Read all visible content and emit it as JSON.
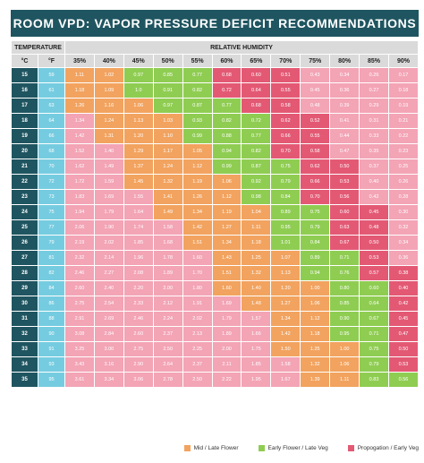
{
  "title": "ROOM VPD: VAPOR PRESSURE DEFICIT RECOMMENDATIONS (kPa)",
  "header": {
    "temperature": "TEMPERATURE",
    "relative_humidity": "RELATIVE HUMIDITY",
    "celsius": "°C",
    "fahrenheit": "°F"
  },
  "humidity_columns": [
    "35%",
    "40%",
    "45%",
    "50%",
    "55%",
    "60%",
    "65%",
    "70%",
    "75%",
    "80%",
    "85%",
    "90%"
  ],
  "colors": {
    "header_bg": "#1f5560",
    "temp_cell": "#75cce0",
    "mid_late_flower": "#f2a35f",
    "early_flower_late_veg": "#8fcd52",
    "propagation_early_veg": "#e35974",
    "danger_zone": "#f3a4b5",
    "subheader_bg": "#dadada"
  },
  "legend": [
    {
      "label": "Mid / Late Flower",
      "color": "#f2a35f"
    },
    {
      "label": "Early Flower / Late Veg",
      "color": "#8fcd52"
    },
    {
      "label": "Propogation / Early Veg",
      "color": "#e35974"
    }
  ],
  "rows": [
    {
      "c": "15",
      "f": "59",
      "v": [
        "1.11",
        "1.02",
        "0.97",
        "0.85",
        "0.77",
        "0.68",
        "0.60",
        "0.51",
        "0.43",
        "0.34",
        "0.26",
        "0.17"
      ],
      "k": [
        "o",
        "o",
        "g",
        "g",
        "g",
        "m",
        "m",
        "m",
        "p",
        "p",
        "p",
        "p"
      ]
    },
    {
      "c": "16",
      "f": "61",
      "v": [
        "1.18",
        "1.09",
        "1.0",
        "0.91",
        "0.82",
        "0.72",
        "0.64",
        "0.55",
        "0.45",
        "0.36",
        "0.27",
        "0.18"
      ],
      "k": [
        "o",
        "o",
        "g",
        "g",
        "g",
        "m",
        "m",
        "m",
        "p",
        "p",
        "p",
        "p"
      ]
    },
    {
      "c": "17",
      "f": "63",
      "v": [
        "1.26",
        "1.16",
        "1.06",
        "0.97",
        "0.87",
        "0.77",
        "0.68",
        "0.58",
        "0.48",
        "0.39",
        "0.29",
        "0.19"
      ],
      "k": [
        "o",
        "o",
        "o",
        "g",
        "g",
        "g",
        "m",
        "m",
        "p",
        "p",
        "p",
        "p"
      ]
    },
    {
      "c": "18",
      "f": "64",
      "v": [
        "1.34",
        "1.24",
        "1.13",
        "1.03",
        "0.93",
        "0.82",
        "0.72",
        "0.62",
        "0.52",
        "0.41",
        "0.31",
        "0.21"
      ],
      "k": [
        "p",
        "o",
        "o",
        "o",
        "g",
        "g",
        "g",
        "m",
        "m",
        "p",
        "p",
        "p"
      ]
    },
    {
      "c": "19",
      "f": "66",
      "v": [
        "1.42",
        "1.31",
        "1.20",
        "1.10",
        "0.99",
        "0.88",
        "0.77",
        "0.66",
        "0.55",
        "0.44",
        "0.33",
        "0.22"
      ],
      "k": [
        "p",
        "o",
        "o",
        "o",
        "g",
        "g",
        "g",
        "m",
        "m",
        "p",
        "p",
        "p"
      ]
    },
    {
      "c": "20",
      "f": "68",
      "v": [
        "1.52",
        "1.40",
        "1.29",
        "1.17",
        "1.05",
        "0.94",
        "0.82",
        "0.70",
        "0.58",
        "0.47",
        "0.35",
        "0.23"
      ],
      "k": [
        "p",
        "p",
        "o",
        "o",
        "o",
        "g",
        "g",
        "m",
        "m",
        "p",
        "p",
        "p"
      ]
    },
    {
      "c": "21",
      "f": "70",
      "v": [
        "1.62",
        "1.49",
        "1.37",
        "1.24",
        "1.12",
        "0.99",
        "0.87",
        "0.75",
        "0.62",
        "0.50",
        "0.37",
        "0.25"
      ],
      "k": [
        "p",
        "p",
        "o",
        "o",
        "o",
        "g",
        "g",
        "g",
        "m",
        "m",
        "p",
        "p"
      ]
    },
    {
      "c": "22",
      "f": "72",
      "v": [
        "1.72",
        "1.59",
        "1.45",
        "1.32",
        "1.19",
        "1.06",
        "0.92",
        "0.79",
        "0.66",
        "0.53",
        "0.40",
        "0.26"
      ],
      "k": [
        "p",
        "p",
        "o",
        "o",
        "o",
        "o",
        "g",
        "g",
        "m",
        "m",
        "p",
        "p"
      ]
    },
    {
      "c": "23",
      "f": "73",
      "v": [
        "1.83",
        "1.69",
        "1.55",
        "1.41",
        "1.26",
        "1.12",
        "0.98",
        "0.84",
        "0.70",
        "0.56",
        "0.42",
        "0.28"
      ],
      "k": [
        "p",
        "p",
        "p",
        "o",
        "o",
        "o",
        "g",
        "g",
        "m",
        "m",
        "p",
        "p"
      ]
    },
    {
      "c": "24",
      "f": "75",
      "v": [
        "1.94",
        "1.79",
        "1.64",
        "1.49",
        "1.34",
        "1.19",
        "1.04",
        "0.89",
        "0.75",
        "0.60",
        "0.45",
        "0.30"
      ],
      "k": [
        "p",
        "p",
        "p",
        "o",
        "o",
        "o",
        "o",
        "g",
        "g",
        "m",
        "m",
        "p"
      ]
    },
    {
      "c": "25",
      "f": "77",
      "v": [
        "2.06",
        "1.90",
        "1.74",
        "1.58",
        "1.42",
        "1.27",
        "1.11",
        "0.95",
        "0.79",
        "0.63",
        "0.48",
        "0.32"
      ],
      "k": [
        "p",
        "p",
        "p",
        "p",
        "o",
        "o",
        "o",
        "g",
        "g",
        "m",
        "m",
        "p"
      ]
    },
    {
      "c": "26",
      "f": "79",
      "v": [
        "2.19",
        "2.02",
        "1.85",
        "1.68",
        "1.51",
        "1.34",
        "1.18",
        "1.01",
        "0.84",
        "0.67",
        "0.50",
        "0.34"
      ],
      "k": [
        "p",
        "p",
        "p",
        "p",
        "o",
        "o",
        "o",
        "g",
        "g",
        "m",
        "m",
        "p"
      ]
    },
    {
      "c": "27",
      "f": "81",
      "v": [
        "2.32",
        "2.14",
        "1.96",
        "1.78",
        "1.60",
        "1.43",
        "1.25",
        "1.07",
        "0.89",
        "0.71",
        "0.53",
        "0.36"
      ],
      "k": [
        "p",
        "p",
        "p",
        "p",
        "p",
        "o",
        "o",
        "o",
        "g",
        "g",
        "m",
        "p"
      ]
    },
    {
      "c": "28",
      "f": "82",
      "v": [
        "2.46",
        "2.27",
        "2.08",
        "1.89",
        "1.70",
        "1.51",
        "1.32",
        "1.13",
        "0.94",
        "0.76",
        "0.57",
        "0.38"
      ],
      "k": [
        "p",
        "p",
        "p",
        "p",
        "p",
        "o",
        "o",
        "o",
        "g",
        "g",
        "m",
        "m"
      ]
    },
    {
      "c": "29",
      "f": "84",
      "v": [
        "2.60",
        "2.40",
        "2.20",
        "2.00",
        "1.80",
        "1.60",
        "1.40",
        "1.20",
        "1.00",
        "0.80",
        "0.60",
        "0.40"
      ],
      "k": [
        "p",
        "p",
        "p",
        "p",
        "p",
        "o",
        "o",
        "o",
        "o",
        "g",
        "g",
        "m"
      ]
    },
    {
      "c": "30",
      "f": "86",
      "v": [
        "2.75",
        "2.54",
        "2.33",
        "2.12",
        "1.91",
        "1.69",
        "1.48",
        "1.27",
        "1.06",
        "0.85",
        "0.64",
        "0.42"
      ],
      "k": [
        "p",
        "p",
        "p",
        "p",
        "p",
        "p",
        "o",
        "o",
        "o",
        "g",
        "g",
        "m"
      ]
    },
    {
      "c": "31",
      "f": "88",
      "v": [
        "2.91",
        "2.69",
        "2.46",
        "2.24",
        "2.02",
        "1.79",
        "1.57",
        "1.34",
        "1.12",
        "0.90",
        "0.67",
        "0.45"
      ],
      "k": [
        "p",
        "p",
        "p",
        "p",
        "p",
        "p",
        "p",
        "o",
        "o",
        "g",
        "g",
        "m"
      ]
    },
    {
      "c": "32",
      "f": "90",
      "v": [
        "3.08",
        "2.84",
        "2.60",
        "2.37",
        "2.13",
        "1.89",
        "1.66",
        "1.42",
        "1.18",
        "0.95",
        "0.71",
        "0.47"
      ],
      "k": [
        "p",
        "p",
        "p",
        "p",
        "p",
        "p",
        "p",
        "o",
        "o",
        "g",
        "g",
        "m"
      ]
    },
    {
      "c": "33",
      "f": "91",
      "v": [
        "3.25",
        "3.00",
        "2.75",
        "2.50",
        "2.25",
        "2.00",
        "1.75",
        "1.50",
        "1.25",
        "1.00",
        "0.75",
        "0.50"
      ],
      "k": [
        "p",
        "p",
        "p",
        "p",
        "p",
        "p",
        "p",
        "o",
        "o",
        "o",
        "g",
        "m"
      ]
    },
    {
      "c": "34",
      "f": "93",
      "v": [
        "3.43",
        "3.16",
        "2.90",
        "2.64",
        "2.37",
        "2.11",
        "1.85",
        "1.58",
        "1.32",
        "1.06",
        "0.79",
        "0.53"
      ],
      "k": [
        "p",
        "p",
        "p",
        "p",
        "p",
        "p",
        "p",
        "p",
        "o",
        "o",
        "g",
        "m"
      ]
    },
    {
      "c": "35",
      "f": "95",
      "v": [
        "3.61",
        "3.34",
        "3.06",
        "2.78",
        "2.50",
        "2.22",
        "1.95",
        "1.67",
        "1.39",
        "1.11",
        "0.83",
        "0.56"
      ],
      "k": [
        "p",
        "p",
        "p",
        "p",
        "p",
        "p",
        "p",
        "p",
        "o",
        "o",
        "g",
        "g"
      ]
    }
  ]
}
